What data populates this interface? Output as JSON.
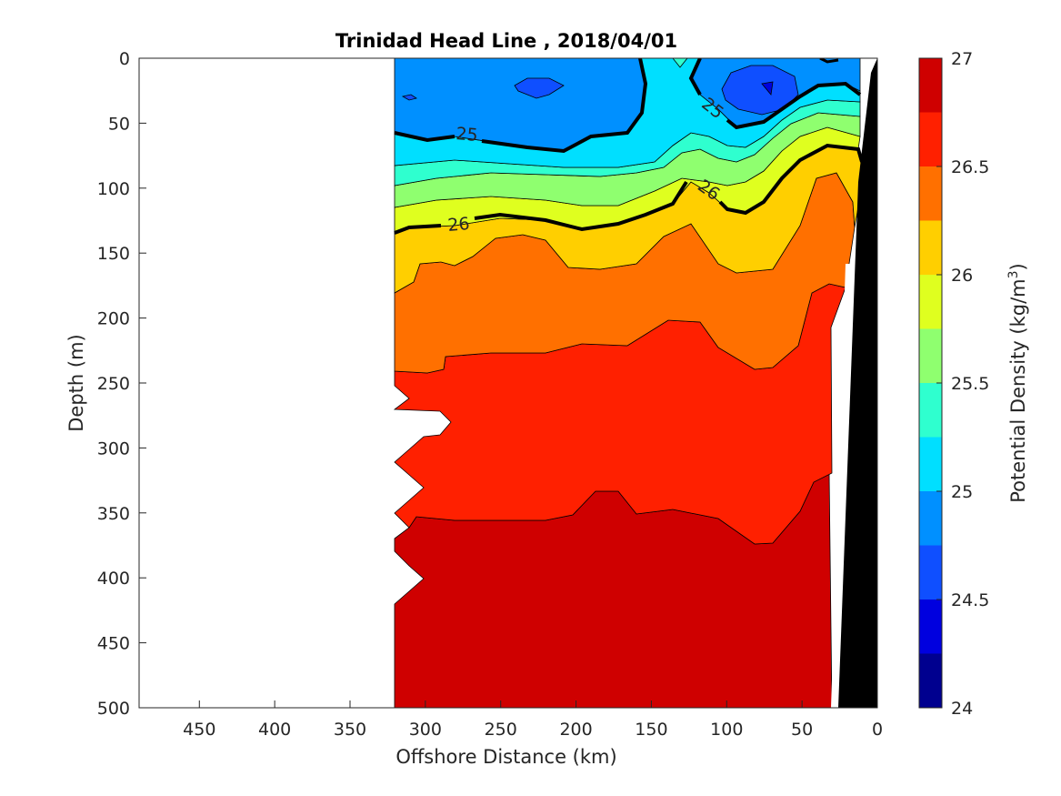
{
  "chart_data": {
    "type": "filled-contour",
    "title": "Trinidad Head Line , 2018/04/01",
    "xlabel": "Offshore Distance (km)",
    "ylabel": "Depth (m)",
    "xlim": [
      490,
      0
    ],
    "ylim": [
      0,
      500
    ],
    "x_reversed": true,
    "y_reversed": true,
    "x_ticks": [
      "450",
      "400",
      "350",
      "300",
      "250",
      "200",
      "150",
      "100",
      "50",
      "0"
    ],
    "y_ticks": [
      "0",
      "50",
      "100",
      "150",
      "200",
      "250",
      "300",
      "350",
      "400",
      "450",
      "500"
    ],
    "colorbar": {
      "label": "Potential Density (kg/m",
      "label_sup": "3",
      "label_end": ")",
      "range": [
        24,
        27
      ],
      "step": 0.25,
      "ticks": [
        "24",
        "24.5",
        "25",
        "25.5",
        "26",
        "26.5",
        "27"
      ],
      "colors": [
        "#00008f",
        "#0000df",
        "#0f4fff",
        "#0090ff",
        "#00dfff",
        "#2fffcf",
        "#8fff6f",
        "#dfff1f",
        "#ffcf00",
        "#ff7000",
        "#ff2000",
        "#cf0000"
      ]
    },
    "labeled_contours": [
      {
        "level": "25",
        "label_positions_km": [
          [
            270,
            58
          ],
          [
            130,
            38
          ]
        ]
      },
      {
        "level": "26",
        "label_positions_km": [
          [
            285,
            128
          ],
          [
            130,
            100
          ]
        ]
      }
    ],
    "bands": [
      {
        "level_min": 26.75,
        "level_max": 27.0,
        "boundary": [
          [
            320,
            500
          ],
          [
            320,
            420
          ],
          [
            310,
            420
          ],
          [
            320,
            410
          ],
          [
            320,
            395
          ],
          [
            310,
            385
          ],
          [
            320,
            375
          ],
          [
            330,
            360
          ],
          [
            380,
            350
          ],
          [
            430,
            350
          ],
          [
            470,
            330
          ],
          [
            500,
            330
          ],
          [
            530,
            330
          ],
          [
            560,
            340
          ],
          [
            585,
            330
          ],
          [
            620,
            330
          ],
          [
            650,
            345
          ],
          [
            690,
            355
          ],
          [
            720,
            360
          ],
          [
            750,
            355
          ],
          [
            780,
            345
          ],
          [
            810,
            340
          ],
          [
            840,
            335
          ],
          [
            870,
            330
          ],
          [
            890,
            330
          ],
          [
            905,
            330
          ],
          [
            915,
            325
          ],
          [
            915,
            500
          ]
        ]
      },
      {
        "level_min": 26.5,
        "level_max": 26.75,
        "boundary": [
          [
            320,
            350
          ],
          [
            310,
            340
          ],
          [
            320,
            330
          ],
          [
            320,
            310
          ],
          [
            310,
            300
          ],
          [
            320,
            290
          ],
          [
            320,
            280
          ],
          [
            300,
            270
          ],
          [
            320,
            260
          ],
          [
            320,
            240
          ],
          [
            340,
            230
          ],
          [
            380,
            225
          ],
          [
            420,
            220
          ],
          [
            450,
            220
          ],
          [
            490,
            225
          ],
          [
            520,
            220
          ],
          [
            560,
            220
          ],
          [
            600,
            215
          ],
          [
            640,
            210
          ],
          [
            680,
            205
          ],
          [
            700,
            200
          ],
          [
            730,
            205
          ],
          [
            760,
            210
          ],
          [
            790,
            220
          ],
          [
            820,
            225
          ],
          [
            850,
            230
          ],
          [
            880,
            225
          ],
          [
            905,
            215
          ],
          [
            915,
            205
          ],
          [
            915,
            330
          ],
          [
            890,
            330
          ],
          [
            840,
            335
          ],
          [
            780,
            345
          ],
          [
            720,
            360
          ],
          [
            650,
            345
          ],
          [
            585,
            330
          ],
          [
            530,
            330
          ],
          [
            470,
            330
          ],
          [
            430,
            350
          ],
          [
            380,
            350
          ],
          [
            330,
            360
          ]
        ]
      }
    ]
  }
}
